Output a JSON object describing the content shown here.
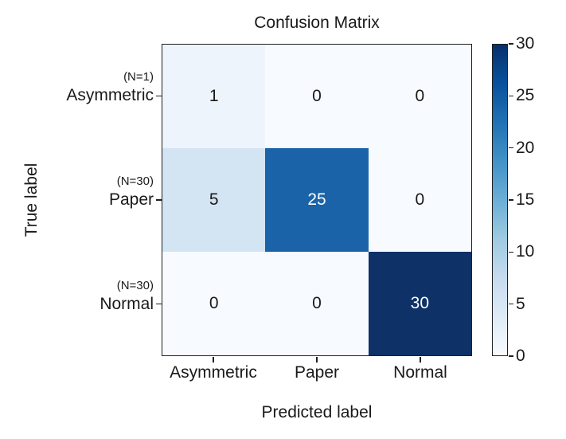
{
  "figure": {
    "background_color": "#ffffff",
    "text_color": "#1a1a1a"
  },
  "chart_data": {
    "type": "heatmap",
    "title": "Confusion Matrix",
    "xlabel": "Predicted label",
    "ylabel": "True label",
    "categories": [
      "Asymmetric",
      "Paper",
      "Normal"
    ],
    "rows": [
      {
        "sublabel": "(N=1)",
        "label": "Asymmetric"
      },
      {
        "sublabel": "(N=30)",
        "label": "Paper"
      },
      {
        "sublabel": "(N=30)",
        "label": "Normal"
      }
    ],
    "matrix": [
      [
        1,
        0,
        0
      ],
      [
        5,
        25,
        0
      ],
      [
        0,
        0,
        30
      ]
    ],
    "cell_colors": [
      [
        "#eef4fb",
        "#f7fbff",
        "#f7fbff"
      ],
      [
        "#d3e4f3",
        "#1b63a8",
        "#f7fbff"
      ],
      [
        "#f7fbff",
        "#f7fbff",
        "#0e3167"
      ]
    ],
    "grid": false,
    "legend_position": "none",
    "colorbar": {
      "min": 0,
      "max": 30,
      "ticks": [
        0,
        5,
        10,
        15,
        20,
        25,
        30
      ],
      "gradient_stops": [
        "#f7fbff",
        "#deebf7",
        "#c6dbef",
        "#9ecae1",
        "#6baed6",
        "#4292c6",
        "#2171b5",
        "#08519c",
        "#08306b"
      ]
    }
  }
}
